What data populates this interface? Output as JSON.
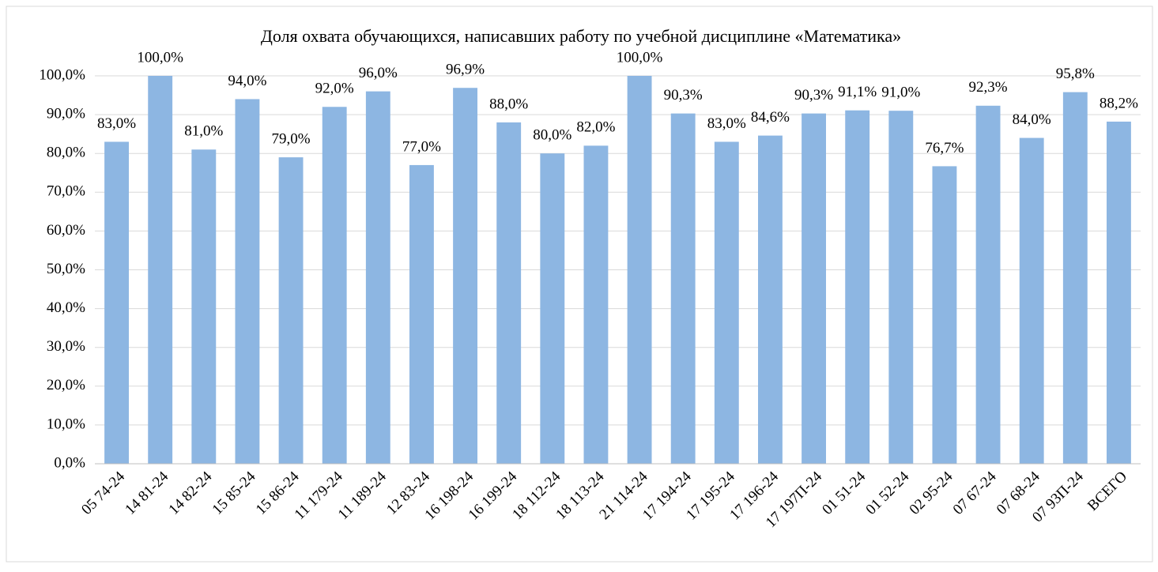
{
  "chart_data": {
    "type": "bar",
    "title": "Доля охвата обучающихся, написавших работу по учебной дисциплине «Математика»",
    "categories": [
      "05 74-24",
      "14 81-24",
      "14 82-24",
      "15 85-24",
      "15 86-24",
      "11 179-24",
      "11 189-24",
      "12 83-24",
      "16 198-24",
      "16 199-24",
      "18 112-24",
      "18 113-24",
      "21 114-24",
      "17 194-24",
      "17 195-24",
      "17 196-24",
      "17 197П-24",
      "01 51-24",
      "01 52-24",
      "02 95-24",
      "07 67-24",
      "07 68-24",
      "07 93П-24",
      "ВСЕГО"
    ],
    "values": [
      83,
      100,
      81,
      94,
      79,
      92,
      96,
      77,
      96.9,
      88,
      80,
      82,
      100,
      90.3,
      83,
      84.6,
      90.3,
      91.1,
      91,
      76.7,
      92.3,
      84,
      95.8,
      88.2
    ],
    "value_labels": [
      "83,0%",
      "100,0%",
      "81,0%",
      "94,0%",
      "79,0%",
      "92,0%",
      "96,0%",
      "77,0%",
      "96,9%",
      "88,0%",
      "80,0%",
      "82,0%",
      "100,0%",
      "90,3%",
      "83,0%",
      "84,6%",
      "90,3%",
      "91,1%",
      "91,0%",
      "76,7%",
      "92,3%",
      "84,0%",
      "95,8%",
      "88,2%"
    ],
    "color": "#8db6e2",
    "ylim": [
      0,
      100
    ],
    "yticks": [
      {
        "value": 0,
        "label": "0,0%"
      },
      {
        "value": 10,
        "label": "10,0%"
      },
      {
        "value": 20,
        "label": "20,0%"
      },
      {
        "value": 30,
        "label": "30,0%"
      },
      {
        "value": 40,
        "label": "40,0%"
      },
      {
        "value": 50,
        "label": "50,0%"
      },
      {
        "value": 60,
        "label": "60,0%"
      },
      {
        "value": 70,
        "label": "70,0%"
      },
      {
        "value": 80,
        "label": "80,0%"
      },
      {
        "value": 90,
        "label": "90,0%"
      },
      {
        "value": 100,
        "label": "100,0%"
      }
    ],
    "grid": true
  }
}
